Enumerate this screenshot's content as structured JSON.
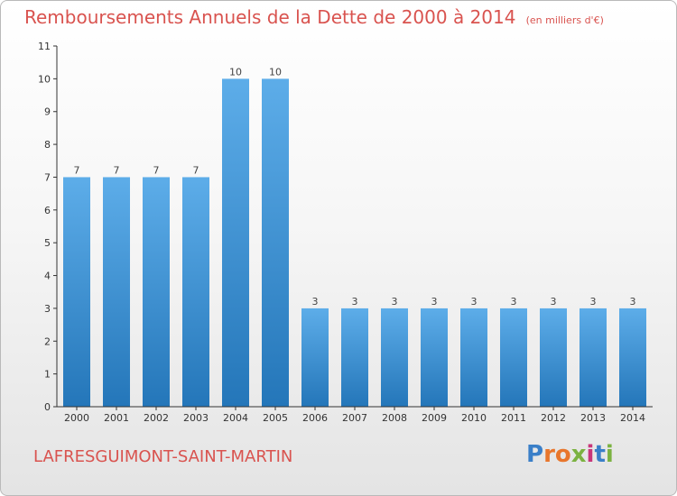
{
  "title": "Remboursements Annuels de la Dette de 2000 à 2014",
  "unit": "(en milliers d'€)",
  "commune": "LAFRESGUIMONT-SAINT-MARTIN",
  "logo": {
    "letters": [
      {
        "ch": "P",
        "color": "#3a7fc8"
      },
      {
        "ch": "r",
        "color": "#e8762c"
      },
      {
        "ch": "o",
        "color": "#e8762c"
      },
      {
        "ch": "x",
        "color": "#7bb241"
      },
      {
        "ch": "i",
        "color": "#c8367a"
      },
      {
        "ch": "t",
        "color": "#3a7fc8"
      },
      {
        "ch": "i",
        "color": "#7bb241"
      }
    ]
  },
  "colors": {
    "bar_top": "#5dade9",
    "bar_bottom": "#2476b9",
    "title": "#d9534f",
    "axis": "#333333"
  },
  "chart_data": {
    "type": "bar",
    "categories": [
      "2000",
      "2001",
      "2002",
      "2003",
      "2004",
      "2005",
      "2006",
      "2007",
      "2008",
      "2009",
      "2010",
      "2011",
      "2012",
      "2013",
      "2014"
    ],
    "values": [
      7,
      7,
      7,
      7,
      10,
      10,
      3,
      3,
      3,
      3,
      3,
      3,
      3,
      3,
      3
    ],
    "data_labels": [
      "7",
      "7",
      "7",
      "7",
      "10",
      "10",
      "3",
      "3",
      "3",
      "3",
      "3",
      "3",
      "3",
      "3",
      "3"
    ],
    "ylim": [
      0,
      11
    ],
    "yticks": [
      0,
      1,
      2,
      3,
      4,
      5,
      6,
      7,
      8,
      9,
      10,
      11
    ],
    "grid": false
  }
}
